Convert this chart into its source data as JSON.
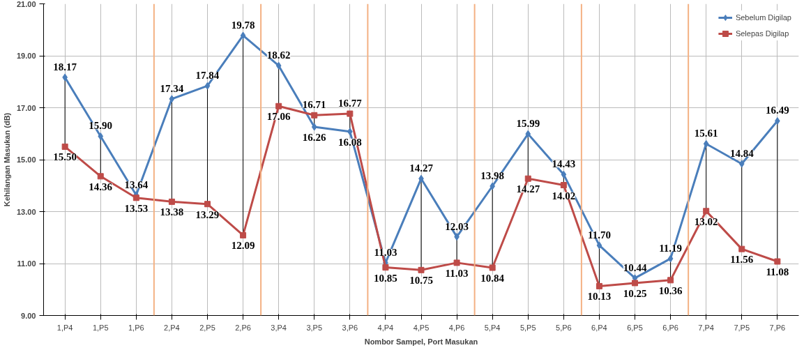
{
  "chart_data": {
    "type": "line",
    "xlabel": "Nombor Sampel, Port Masukan",
    "ylabel": "Kehilangan Masukan (dB)",
    "categories": [
      "1,P4",
      "1,P5",
      "1,P6",
      "2,P4",
      "2,P5",
      "2,P6",
      "3,P4",
      "3,P5",
      "3,P6",
      "4,P4",
      "4,P5",
      "4,P6",
      "5,P4",
      "5,P5",
      "5,P6",
      "6,P4",
      "6,P5",
      "6,P6",
      "7,P4",
      "7,P5",
      "7,P6"
    ],
    "series": [
      {
        "name": "Sebelum Digilap",
        "color": "#4a7ebb",
        "marker": "diamond",
        "values": [
          18.17,
          15.9,
          13.64,
          17.34,
          17.84,
          19.78,
          18.62,
          16.26,
          16.08,
          11.03,
          14.27,
          12.03,
          13.98,
          15.99,
          14.43,
          11.7,
          10.44,
          11.19,
          15.61,
          14.84,
          16.49
        ],
        "value_labels": [
          "18.17",
          "15.90",
          "13.64",
          "17.34",
          "17.84",
          "19.78",
          "18.62",
          "16.26",
          "16.08",
          "11.03",
          "14.27",
          "12.03",
          "13.98",
          "15.99",
          "14.43",
          "11.70",
          "10.44",
          "11.19",
          "15.61",
          "14.84",
          "16.49"
        ]
      },
      {
        "name": "Selepas Digilap",
        "color": "#be4b48",
        "marker": "square",
        "values": [
          15.5,
          14.36,
          13.53,
          13.38,
          13.29,
          12.09,
          17.06,
          16.71,
          16.77,
          10.85,
          10.75,
          11.03,
          10.84,
          14.27,
          14.02,
          10.13,
          10.25,
          10.36,
          13.02,
          11.56,
          11.08
        ],
        "value_labels": [
          "15.50",
          "14.36",
          "13.53",
          "13.38",
          "13.29",
          "12.09",
          "17.06",
          "16.71",
          "16.77",
          "10.85",
          "10.75",
          "11.03",
          "10.84",
          "14.27",
          "14.02",
          "10.13",
          "10.25",
          "10.36",
          "13.02",
          "11.56",
          "11.08"
        ]
      }
    ],
    "ylim": [
      9,
      21
    ],
    "yticks": [
      {
        "value": 9,
        "label": "9.00"
      },
      {
        "value": 11,
        "label": "11.00"
      },
      {
        "value": 13,
        "label": "13.00"
      },
      {
        "value": 15,
        "label": "15.00"
      },
      {
        "value": 17,
        "label": "17.00"
      },
      {
        "value": 19,
        "label": "19.00"
      },
      {
        "value": 21,
        "label": "21.00"
      }
    ],
    "grid": true,
    "legend": "top right",
    "line_style": "solid"
  }
}
